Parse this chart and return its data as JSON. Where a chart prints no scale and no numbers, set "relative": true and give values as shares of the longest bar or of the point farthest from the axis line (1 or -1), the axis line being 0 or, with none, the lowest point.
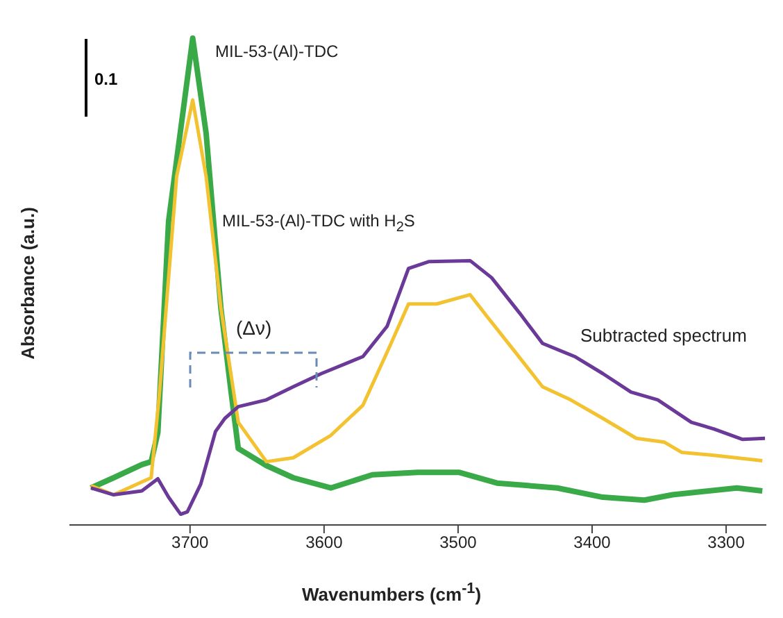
{
  "chart_data": {
    "type": "line",
    "relative": true,
    "xlabel": "Wavenumbers (cm$^{-1}$)",
    "ylabel": "Absorbance (a.u.)",
    "xlim": [
      3790,
      3270
    ],
    "xticks": [
      3700,
      3600,
      3500,
      3400,
      3300
    ],
    "annotations": [
      "0.1",
      "(Δν)"
    ],
    "series": [
      {
        "name": "MIL-53-(Al)-TDC",
        "color": "#3aaa48",
        "x": [
          3774,
          3757,
          3736,
          3729,
          3724,
          3716,
          3698,
          3688,
          3677,
          3669,
          3664,
          3643,
          3623,
          3595,
          3564,
          3530,
          3499,
          3471,
          3426,
          3392,
          3361,
          3340,
          3292,
          3273
        ],
        "values": [
          0.076,
          0.097,
          0.124,
          0.13,
          0.19,
          0.624,
          1.0,
          0.805,
          0.446,
          0.265,
          0.157,
          0.122,
          0.097,
          0.076,
          0.103,
          0.108,
          0.108,
          0.086,
          0.076,
          0.057,
          0.051,
          0.062,
          0.076,
          0.07
        ]
      },
      {
        "name": "MIL-53-(Al)-TDC with H$_{2}$S",
        "color": "#f2c230",
        "x": [
          3774,
          3757,
          3729,
          3723,
          3710,
          3698,
          3688,
          3677,
          3664,
          3643,
          3623,
          3595,
          3571,
          3550,
          3537,
          3516,
          3491,
          3478,
          3457,
          3437,
          3416,
          3392,
          3367,
          3346,
          3333,
          3309,
          3273
        ],
        "values": [
          0.081,
          0.062,
          0.097,
          0.265,
          0.716,
          0.873,
          0.716,
          0.446,
          0.211,
          0.13,
          0.138,
          0.184,
          0.246,
          0.373,
          0.454,
          0.454,
          0.473,
          0.427,
          0.354,
          0.284,
          0.257,
          0.219,
          0.178,
          0.17,
          0.149,
          0.143,
          0.132
        ]
      },
      {
        "name": "Subtracted spectrum",
        "color": "#6b3a99",
        "x": [
          3774,
          3757,
          3736,
          3724,
          3716,
          3707,
          3702,
          3692,
          3681,
          3674,
          3664,
          3643,
          3623,
          3602,
          3571,
          3553,
          3537,
          3522,
          3491,
          3475,
          3454,
          3437,
          3413,
          3392,
          3371,
          3351,
          3326,
          3309,
          3288,
          3271
        ],
        "values": [
          0.076,
          0.062,
          0.07,
          0.095,
          0.057,
          0.022,
          0.027,
          0.084,
          0.192,
          0.219,
          0.243,
          0.257,
          0.284,
          0.311,
          0.346,
          0.408,
          0.527,
          0.541,
          0.543,
          0.508,
          0.435,
          0.373,
          0.346,
          0.311,
          0.273,
          0.257,
          0.211,
          0.197,
          0.176,
          0.178
        ]
      }
    ]
  }
}
